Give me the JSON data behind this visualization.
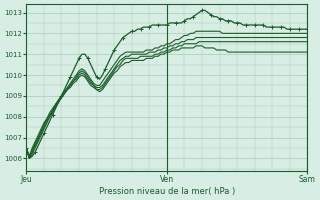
{
  "xlabel": "Pression niveau de la mer( hPa )",
  "bg_color": "#d8ede4",
  "grid_color": "#a8ccb8",
  "line_color": "#1a5c2a",
  "text_color": "#1a5c2a",
  "ylim": [
    1005.4,
    1013.4
  ],
  "xtick_labels": [
    "Jeu",
    "Ven",
    "Sam"
  ],
  "xtick_pos": [
    0,
    48,
    96
  ],
  "ytick_vals": [
    1006,
    1007,
    1008,
    1009,
    1010,
    1011,
    1012,
    1013
  ],
  "total_points": 97,
  "series": [
    [
      1006.5,
      1006.0,
      1006.1,
      1006.3,
      1006.6,
      1006.9,
      1007.2,
      1007.5,
      1007.8,
      1008.1,
      1008.4,
      1008.7,
      1009.0,
      1009.3,
      1009.6,
      1009.9,
      1010.2,
      1010.5,
      1010.8,
      1011.0,
      1011.0,
      1010.8,
      1010.5,
      1010.2,
      1009.9,
      1009.8,
      1010.0,
      1010.3,
      1010.6,
      1010.9,
      1011.2,
      1011.4,
      1011.6,
      1011.8,
      1011.9,
      1012.0,
      1012.1,
      1012.1,
      1012.2,
      1012.2,
      1012.3,
      1012.3,
      1012.3,
      1012.4,
      1012.4,
      1012.4,
      1012.4,
      1012.4,
      1012.4,
      1012.5,
      1012.5,
      1012.5,
      1012.5,
      1012.5,
      1012.6,
      1012.7,
      1012.7,
      1012.8,
      1012.9,
      1013.0,
      1013.1,
      1013.1,
      1013.0,
      1012.9,
      1012.8,
      1012.8,
      1012.7,
      1012.7,
      1012.6,
      1012.6,
      1012.6,
      1012.5,
      1012.5,
      1012.5,
      1012.4,
      1012.4,
      1012.4,
      1012.4,
      1012.4,
      1012.4,
      1012.4,
      1012.4,
      1012.3,
      1012.3,
      1012.3,
      1012.3,
      1012.3,
      1012.3,
      1012.3,
      1012.2,
      1012.2,
      1012.2,
      1012.2,
      1012.2,
      1012.2,
      1012.2,
      1012.2
    ],
    [
      1006.5,
      1006.0,
      1006.2,
      1006.5,
      1006.8,
      1007.1,
      1007.4,
      1007.7,
      1008.0,
      1008.2,
      1008.5,
      1008.7,
      1009.0,
      1009.2,
      1009.4,
      1009.6,
      1009.8,
      1010.0,
      1010.2,
      1010.3,
      1010.2,
      1010.0,
      1009.8,
      1009.6,
      1009.5,
      1009.5,
      1009.7,
      1009.9,
      1010.1,
      1010.3,
      1010.5,
      1010.7,
      1010.9,
      1011.0,
      1011.1,
      1011.1,
      1011.1,
      1011.1,
      1011.1,
      1011.1,
      1011.1,
      1011.2,
      1011.2,
      1011.2,
      1011.3,
      1011.3,
      1011.4,
      1011.4,
      1011.5,
      1011.5,
      1011.6,
      1011.7,
      1011.7,
      1011.8,
      1011.9,
      1011.9,
      1012.0,
      1012.0,
      1012.1,
      1012.1,
      1012.1,
      1012.1,
      1012.1,
      1012.1,
      1012.1,
      1012.1,
      1012.1,
      1012.0,
      1012.0,
      1012.0,
      1012.0,
      1012.0,
      1012.0,
      1012.0,
      1012.0,
      1012.0,
      1012.0,
      1012.0,
      1012.0,
      1012.0,
      1012.0,
      1012.0,
      1012.0,
      1012.0,
      1012.0,
      1012.0,
      1012.0,
      1012.0,
      1012.0,
      1012.0,
      1012.0,
      1012.0,
      1012.0,
      1012.0,
      1012.0,
      1012.0,
      1012.0
    ],
    [
      1006.5,
      1006.0,
      1006.3,
      1006.6,
      1006.9,
      1007.2,
      1007.5,
      1007.8,
      1008.0,
      1008.3,
      1008.5,
      1008.7,
      1008.9,
      1009.1,
      1009.3,
      1009.5,
      1009.7,
      1009.9,
      1010.1,
      1010.2,
      1010.1,
      1009.9,
      1009.7,
      1009.5,
      1009.4,
      1009.4,
      1009.5,
      1009.7,
      1009.9,
      1010.1,
      1010.3,
      1010.5,
      1010.7,
      1010.8,
      1010.9,
      1010.9,
      1011.0,
      1011.0,
      1011.0,
      1011.0,
      1011.0,
      1011.0,
      1011.1,
      1011.1,
      1011.1,
      1011.2,
      1011.2,
      1011.3,
      1011.3,
      1011.4,
      1011.4,
      1011.5,
      1011.5,
      1011.6,
      1011.6,
      1011.7,
      1011.7,
      1011.7,
      1011.8,
      1011.8,
      1011.8,
      1011.8,
      1011.8,
      1011.8,
      1011.8,
      1011.8,
      1011.8,
      1011.8,
      1011.8,
      1011.8,
      1011.8,
      1011.8,
      1011.8,
      1011.8,
      1011.8,
      1011.8,
      1011.8,
      1011.8,
      1011.8,
      1011.8,
      1011.8,
      1011.8,
      1011.8,
      1011.8,
      1011.8,
      1011.8,
      1011.8,
      1011.8,
      1011.8,
      1011.8,
      1011.8,
      1011.8,
      1011.8,
      1011.8,
      1011.8,
      1011.8,
      1011.8
    ],
    [
      1006.5,
      1006.1,
      1006.4,
      1006.7,
      1007.0,
      1007.3,
      1007.6,
      1007.9,
      1008.1,
      1008.3,
      1008.6,
      1008.8,
      1009.0,
      1009.2,
      1009.3,
      1009.5,
      1009.7,
      1009.8,
      1010.0,
      1010.1,
      1010.0,
      1009.8,
      1009.6,
      1009.5,
      1009.3,
      1009.3,
      1009.4,
      1009.6,
      1009.8,
      1010.0,
      1010.2,
      1010.4,
      1010.5,
      1010.7,
      1010.8,
      1010.8,
      1010.8,
      1010.8,
      1010.8,
      1010.9,
      1010.9,
      1010.9,
      1010.9,
      1010.9,
      1011.0,
      1011.0,
      1011.1,
      1011.1,
      1011.2,
      1011.2,
      1011.3,
      1011.3,
      1011.4,
      1011.4,
      1011.5,
      1011.5,
      1011.5,
      1011.5,
      1011.5,
      1011.6,
      1011.6,
      1011.6,
      1011.6,
      1011.6,
      1011.6,
      1011.6,
      1011.6,
      1011.6,
      1011.6,
      1011.6,
      1011.6,
      1011.6,
      1011.6,
      1011.6,
      1011.6,
      1011.6,
      1011.6,
      1011.6,
      1011.6,
      1011.6,
      1011.6,
      1011.6,
      1011.6,
      1011.6,
      1011.6,
      1011.6,
      1011.6,
      1011.6,
      1011.6,
      1011.6,
      1011.6,
      1011.6,
      1011.6,
      1011.6,
      1011.6,
      1011.6,
      1011.6
    ],
    [
      1006.5,
      1006.1,
      1006.5,
      1006.8,
      1007.1,
      1007.4,
      1007.7,
      1007.9,
      1008.2,
      1008.4,
      1008.6,
      1008.8,
      1009.0,
      1009.1,
      1009.3,
      1009.4,
      1009.6,
      1009.7,
      1009.9,
      1010.0,
      1009.9,
      1009.7,
      1009.5,
      1009.4,
      1009.3,
      1009.2,
      1009.3,
      1009.5,
      1009.7,
      1009.9,
      1010.1,
      1010.2,
      1010.4,
      1010.5,
      1010.6,
      1010.6,
      1010.7,
      1010.7,
      1010.7,
      1010.7,
      1010.7,
      1010.8,
      1010.8,
      1010.8,
      1010.9,
      1010.9,
      1011.0,
      1011.0,
      1011.1,
      1011.1,
      1011.2,
      1011.2,
      1011.2,
      1011.3,
      1011.3,
      1011.3,
      1011.3,
      1011.3,
      1011.4,
      1011.4,
      1011.4,
      1011.3,
      1011.3,
      1011.3,
      1011.3,
      1011.2,
      1011.2,
      1011.2,
      1011.2,
      1011.1,
      1011.1,
      1011.1,
      1011.1,
      1011.1,
      1011.1,
      1011.1,
      1011.1,
      1011.1,
      1011.1,
      1011.1,
      1011.1,
      1011.1,
      1011.1,
      1011.1,
      1011.1,
      1011.1,
      1011.1,
      1011.1,
      1011.1,
      1011.1,
      1011.1,
      1011.1,
      1011.1,
      1011.1,
      1011.1,
      1011.1,
      1011.1
    ]
  ]
}
